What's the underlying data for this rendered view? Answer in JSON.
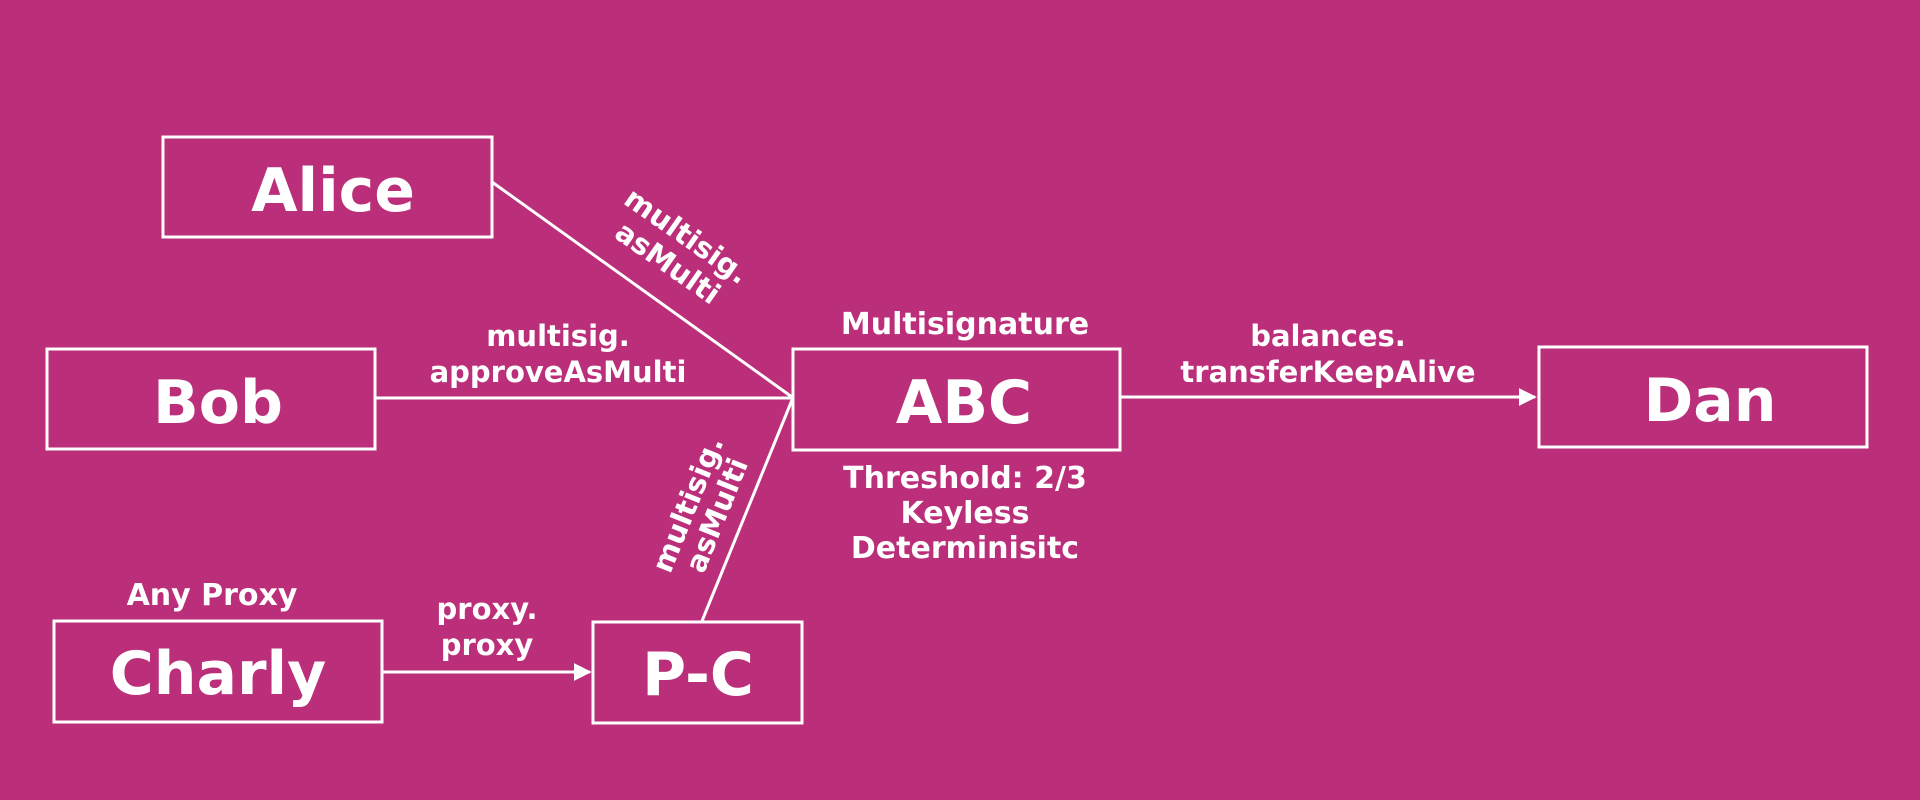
{
  "colors": {
    "background": "#BB2E79",
    "foreground": "#FFFFFF"
  },
  "nodes": {
    "alice": "Alice",
    "bob": "Bob",
    "charly": "Charly",
    "pc": "P-C",
    "abc": "ABC",
    "dan": "Dan"
  },
  "annotations": {
    "any_proxy": "Any Proxy",
    "multisignature": "Multisignature",
    "threshold": "Threshold: 2/3",
    "keyless": "Keyless",
    "deterministic": "Determinisitc"
  },
  "edges": {
    "alice_abc": [
      "multisig.",
      "asMulti"
    ],
    "bob_abc": [
      "multisig.",
      "approveAsMulti"
    ],
    "pc_abc": [
      "multisig.",
      "asMulti"
    ],
    "charly_pc": [
      "proxy.",
      "proxy"
    ],
    "abc_dan": [
      "balances.",
      "transferKeepAlive"
    ]
  }
}
